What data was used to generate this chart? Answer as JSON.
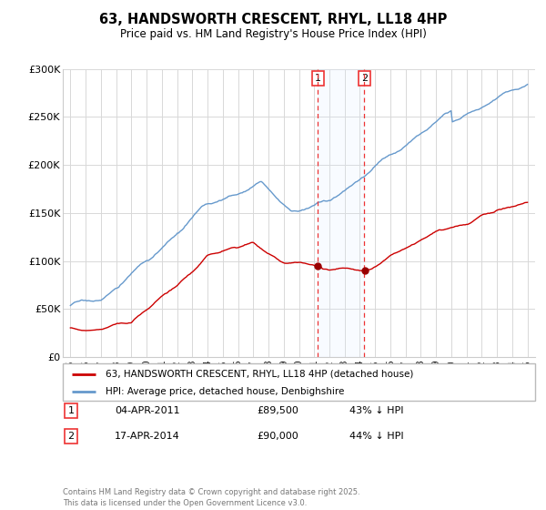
{
  "title": "63, HANDSWORTH CRESCENT, RHYL, LL18 4HP",
  "subtitle": "Price paid vs. HM Land Registry's House Price Index (HPI)",
  "legend_line1": "63, HANDSWORTH CRESCENT, RHYL, LL18 4HP (detached house)",
  "legend_line2": "HPI: Average price, detached house, Denbighshire",
  "transaction1_date": "04-APR-2011",
  "transaction1_price": "£89,500",
  "transaction1_hpi": "43% ↓ HPI",
  "transaction2_date": "17-APR-2014",
  "transaction2_price": "£90,000",
  "transaction2_hpi": "44% ↓ HPI",
  "footer": "Contains HM Land Registry data © Crown copyright and database right 2025.\nThis data is licensed under the Open Government Licence v3.0.",
  "ylim": [
    0,
    300000
  ],
  "yticks": [
    0,
    50000,
    100000,
    150000,
    200000,
    250000,
    300000
  ],
  "ytick_labels": [
    "£0",
    "£50K",
    "£100K",
    "£150K",
    "£200K",
    "£250K",
    "£300K"
  ],
  "xmin": 1995,
  "xmax": 2025,
  "transaction1_x": 2011.25,
  "transaction2_x": 2014.29,
  "background_color": "#ffffff",
  "plot_bg_color": "#ffffff",
  "grid_color": "#d8d8d8",
  "line_red_color": "#cc0000",
  "line_blue_color": "#6699cc",
  "vline_color": "#ee3333",
  "shade_color": "#ddeeff",
  "marker_color": "#990000"
}
